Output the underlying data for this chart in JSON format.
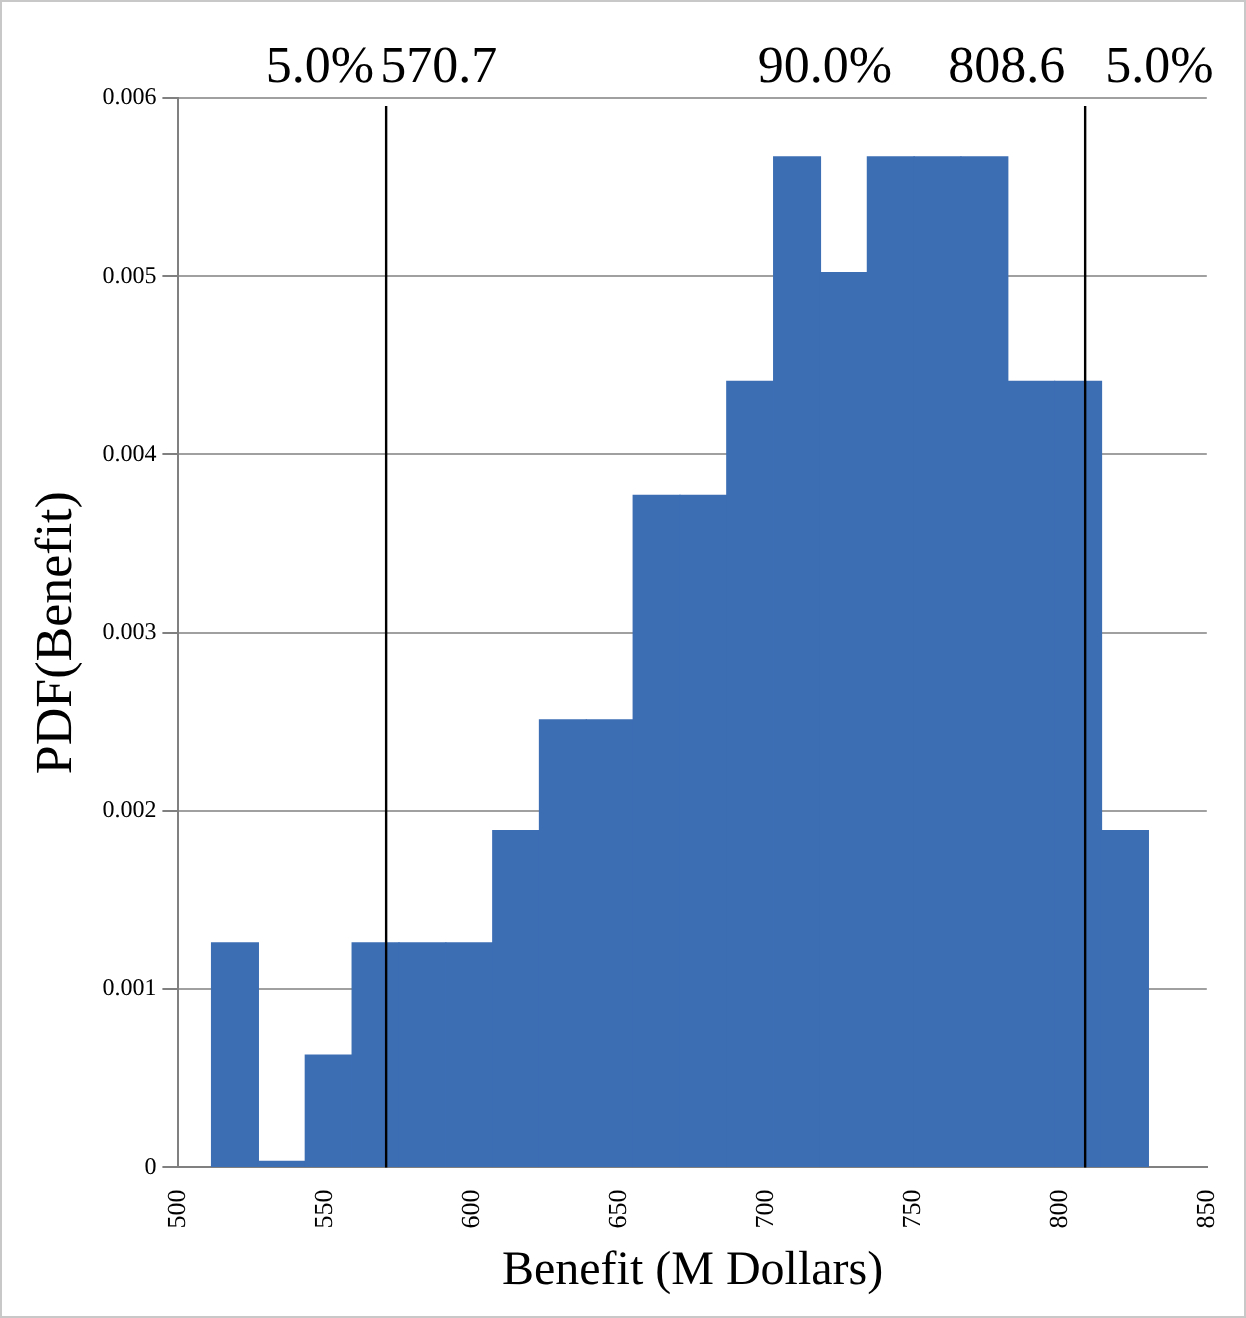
{
  "chart_data": {
    "type": "histogram",
    "xlabel": "Benefit (M Dollars)",
    "ylabel": "PDF(Benefit)",
    "bins": [
      511.3,
      527.2,
      543.2,
      559.1,
      575.1,
      591.0,
      607.0,
      622.9,
      638.8,
      654.8,
      670.7,
      686.6,
      702.6,
      718.5,
      734.5,
      750.4,
      766.3,
      782.3,
      798.2,
      814.2,
      830.1
    ],
    "values": [
      0.00126,
      0,
      0.00063,
      0.00126,
      0.00126,
      0.00126,
      0.00189,
      0.00251,
      0.00251,
      0.00377,
      0.00377,
      0.00441,
      0.00567,
      0.00502,
      0.00567,
      0.00567,
      0.00567,
      0.00441,
      0.00441,
      0.00189
    ],
    "color": "#3c6eb4",
    "xlim": [
      500,
      850
    ],
    "xticks": [
      500,
      550,
      600,
      650,
      700,
      750,
      800,
      850
    ],
    "ylim": [
      0,
      0.006
    ],
    "yticks": [
      0,
      0.001,
      0.002,
      0.003,
      0.004,
      0.005,
      0.006
    ],
    "grid": "y",
    "legend": false,
    "ref_lines": [
      {
        "axis": "x",
        "value": 570.7,
        "label": "570.7",
        "color": "#000000"
      },
      {
        "axis": "x",
        "value": 808.6,
        "label": "808.6",
        "color": "#000000"
      }
    ],
    "annotations": [
      "5.0%",
      "90.0%",
      "5.0%"
    ]
  }
}
